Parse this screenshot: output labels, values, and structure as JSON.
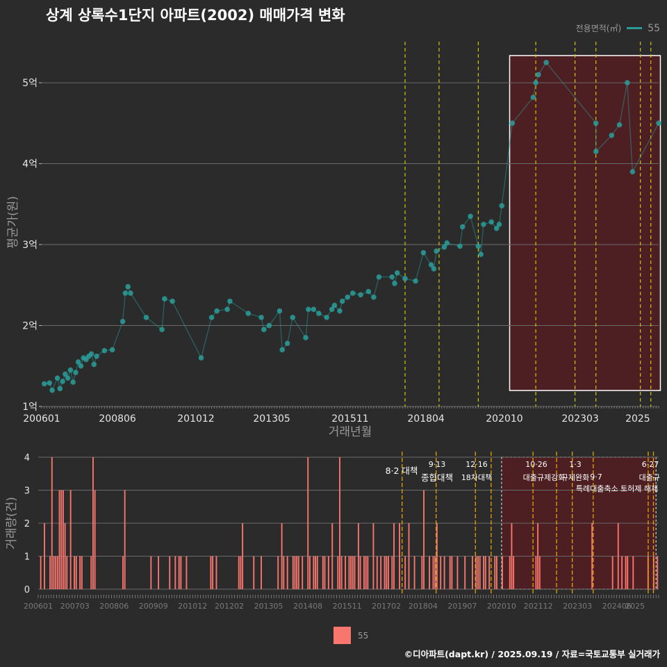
{
  "title": "상계 상록수1단지 아파트(2002) 매매가격 변화",
  "legend": {
    "title": "전용면적(㎡)",
    "item": "55"
  },
  "caption": "©디아파트(dapt.kr) / 2025.09.19 / 자료=국토교통부 실거래가",
  "colors": {
    "background": "#2b2b2b",
    "series_price": "#2a9d9a",
    "series_volume": "#f8766d",
    "policy_line": "#d4c400",
    "highlight_fill": "#4e1f22"
  },
  "chart_data": [
    {
      "type": "line",
      "xlabel": "거래년월",
      "ylabel": "평균가(원)",
      "x_tick_labels": [
        "200601",
        "200806",
        "201012",
        "201305",
        "201511",
        "201804",
        "202010",
        "202303",
        "2025"
      ],
      "y_tick_labels": [
        "1억",
        "2억",
        "3억",
        "4억",
        "5억"
      ],
      "ylim": [
        1.0,
        5.55
      ],
      "xlim": [
        "2006-01",
        "2025-09"
      ],
      "grid": true,
      "highlight_region": [
        "2020-12",
        "2025-07"
      ],
      "policy_lines": [
        "2017-08",
        "2018-09",
        "2019-12",
        "2021-10",
        "2023-01",
        "2023-09",
        "2025-02",
        "2025-06"
      ],
      "series": [
        {
          "name": "55",
          "points": [
            [
              "2006-02",
              1.28
            ],
            [
              "2006-04",
              1.29
            ],
            [
              "2006-05",
              1.2
            ],
            [
              "2006-07",
              1.35
            ],
            [
              "2006-08",
              1.22
            ],
            [
              "2006-09",
              1.31
            ],
            [
              "2006-10",
              1.4
            ],
            [
              "2006-11",
              1.35
            ],
            [
              "2006-12",
              1.45
            ],
            [
              "2007-01",
              1.3
            ],
            [
              "2007-02",
              1.42
            ],
            [
              "2007-03",
              1.55
            ],
            [
              "2007-04",
              1.5
            ],
            [
              "2007-05",
              1.6
            ],
            [
              "2007-06",
              1.58
            ],
            [
              "2007-07",
              1.62
            ],
            [
              "2007-08",
              1.65
            ],
            [
              "2007-09",
              1.52
            ],
            [
              "2007-10",
              1.62
            ],
            [
              "2008-01",
              1.69
            ],
            [
              "2008-04",
              1.7
            ],
            [
              "2008-08",
              2.05
            ],
            [
              "2008-09",
              2.4
            ],
            [
              "2008-10",
              2.48
            ],
            [
              "2008-11",
              2.4
            ],
            [
              "2009-05",
              2.1
            ],
            [
              "2009-11",
              1.95
            ],
            [
              "2009-12",
              2.33
            ],
            [
              "2010-03",
              2.3
            ],
            [
              "2011-02",
              1.6
            ],
            [
              "2011-06",
              2.1
            ],
            [
              "2011-08",
              2.18
            ],
            [
              "2011-12",
              2.2
            ],
            [
              "2012-01",
              2.3
            ],
            [
              "2012-08",
              2.15
            ],
            [
              "2013-01",
              2.1
            ],
            [
              "2013-02",
              1.95
            ],
            [
              "2013-04",
              2.0
            ],
            [
              "2013-08",
              2.18
            ],
            [
              "2013-09",
              1.7
            ],
            [
              "2013-11",
              1.78
            ],
            [
              "2014-01",
              2.1
            ],
            [
              "2014-06",
              1.85
            ],
            [
              "2014-07",
              2.2
            ],
            [
              "2014-09",
              2.2
            ],
            [
              "2014-11",
              2.15
            ],
            [
              "2015-02",
              2.1
            ],
            [
              "2015-04",
              2.2
            ],
            [
              "2015-05",
              2.25
            ],
            [
              "2015-07",
              2.18
            ],
            [
              "2015-08",
              2.3
            ],
            [
              "2015-10",
              2.35
            ],
            [
              "2015-12",
              2.4
            ],
            [
              "2016-03",
              2.38
            ],
            [
              "2016-06",
              2.42
            ],
            [
              "2016-08",
              2.35
            ],
            [
              "2016-10",
              2.6
            ],
            [
              "2017-03",
              2.6
            ],
            [
              "2017-04",
              2.52
            ],
            [
              "2017-05",
              2.65
            ],
            [
              "2017-08",
              2.58
            ],
            [
              "2017-12",
              2.55
            ],
            [
              "2018-03",
              2.9
            ],
            [
              "2018-06",
              2.75
            ],
            [
              "2018-07",
              2.7
            ],
            [
              "2018-08",
              2.92
            ],
            [
              "2018-11",
              2.97
            ],
            [
              "2018-12",
              3.02
            ],
            [
              "2019-05",
              2.98
            ],
            [
              "2019-06",
              3.22
            ],
            [
              "2019-09",
              3.35
            ],
            [
              "2019-12",
              2.98
            ],
            [
              "2020-01",
              2.88
            ],
            [
              "2020-02",
              3.25
            ],
            [
              "2020-05",
              3.28
            ],
            [
              "2020-07",
              3.2
            ],
            [
              "2020-08",
              3.25
            ],
            [
              "2020-09",
              3.48
            ],
            [
              "2021-01",
              4.5
            ],
            [
              "2021-09",
              4.82
            ],
            [
              "2021-10",
              5.0
            ],
            [
              "2021-11",
              5.1
            ],
            [
              "2022-02",
              5.25
            ],
            [
              "2023-09",
              4.5
            ],
            [
              "2023-09",
              4.15
            ],
            [
              "2024-03",
              4.35
            ],
            [
              "2024-06",
              4.48
            ],
            [
              "2024-09",
              5.0
            ],
            [
              "2024-11",
              3.9
            ],
            [
              "2025-09",
              4.5
            ]
          ]
        }
      ]
    },
    {
      "type": "bar",
      "xlabel": "",
      "ylabel": "거래량(건)",
      "x_tick_labels": [
        "200601",
        "200703",
        "200806",
        "200909",
        "201012",
        "201202",
        "201305",
        "201408",
        "201511",
        "201702",
        "201804",
        "201907",
        "202010",
        "202112",
        "202303",
        "202406",
        "2025"
      ],
      "y_tick_labels": [
        "0",
        "1",
        "2",
        "3",
        "4"
      ],
      "ylim": [
        0,
        4
      ],
      "highlight_region": [
        "2020-10",
        "2025-09"
      ],
      "policy_lines": [
        "2017-08",
        "2018-09",
        "2019-12",
        "2020-06",
        "2021-10",
        "2022-07",
        "2023-01",
        "2023-09",
        "2025-06",
        "2025-08"
      ],
      "annotations": [
        "8·2 대책",
        "9·13",
        "종합대책",
        "12·16",
        "18차대책",
        "10·26",
        "대출규제강화",
        "1·3",
        "규제완화",
        "9·7",
        "특례대출축소 토허제 해제",
        "6·27",
        "대출규"
      ],
      "series": [
        {
          "name": "55",
          "monthly_counts": [
            0,
            1,
            0,
            2,
            0,
            0,
            1,
            4,
            1,
            1,
            1,
            3,
            3,
            3,
            2,
            1,
            0,
            3,
            0,
            1,
            1,
            0,
            1,
            1,
            0,
            0,
            0,
            0,
            1,
            4,
            3,
            0,
            0,
            0,
            0,
            0,
            0,
            0,
            0,
            0,
            0,
            0,
            0,
            0,
            0,
            1,
            3,
            0,
            0,
            0,
            0,
            0,
            0,
            0,
            0,
            0,
            0,
            0,
            0,
            0,
            1,
            0,
            0,
            0,
            1,
            0,
            0,
            0,
            0,
            0,
            1,
            0,
            0,
            1,
            0,
            1,
            1,
            0,
            0,
            1,
            0,
            0,
            0,
            0,
            0,
            0,
            0,
            0,
            0,
            0,
            0,
            0,
            1,
            1,
            0,
            1,
            0,
            0,
            0,
            0,
            0,
            0,
            0,
            0,
            0,
            0,
            0,
            1,
            1,
            2,
            0,
            0,
            0,
            0,
            0,
            1,
            0,
            0,
            0,
            1,
            0,
            0,
            0,
            0,
            0,
            0,
            0,
            0,
            1,
            0,
            2,
            1,
            0,
            1,
            0,
            0,
            1,
            1,
            1,
            1,
            0,
            1,
            0,
            0,
            4,
            1,
            0,
            1,
            1,
            1,
            0,
            0,
            1,
            1,
            0,
            1,
            0,
            2,
            0,
            0,
            1,
            4,
            1,
            0,
            1,
            0,
            1,
            1,
            1,
            1,
            0,
            2,
            1,
            0,
            1,
            1,
            1,
            0,
            0,
            2,
            0,
            1,
            0,
            1,
            0,
            1,
            1,
            1,
            0,
            1,
            2,
            0,
            0,
            2,
            0,
            0,
            1,
            0,
            2,
            0,
            0,
            1,
            0,
            0,
            0,
            1,
            3,
            0,
            0,
            1,
            0,
            1,
            1,
            2,
            0,
            1,
            0,
            1,
            0,
            0,
            1,
            1,
            0,
            0,
            1,
            0,
            0,
            0,
            1,
            0,
            0,
            0,
            1,
            0,
            1,
            1,
            1,
            0,
            1,
            1,
            0,
            1,
            0,
            0,
            1,
            1,
            0,
            0,
            1,
            0,
            0,
            0,
            1,
            2,
            1,
            0,
            0,
            0,
            0,
            0,
            0,
            0,
            0,
            0,
            0,
            0,
            1,
            2,
            1,
            0,
            0,
            0,
            0,
            0,
            0,
            0,
            0,
            0,
            0,
            0,
            0,
            0,
            0,
            0,
            0,
            0,
            0,
            0,
            0,
            0,
            0,
            0,
            0,
            0,
            0,
            0,
            2,
            0,
            0,
            0,
            0,
            0,
            0,
            0,
            0,
            0,
            0,
            1,
            0,
            0,
            2,
            0,
            1,
            0,
            1,
            1,
            0,
            0,
            1,
            0,
            0,
            0,
            0,
            0,
            0,
            0,
            1,
            0,
            0,
            1,
            0,
            1
          ]
        }
      ]
    }
  ]
}
